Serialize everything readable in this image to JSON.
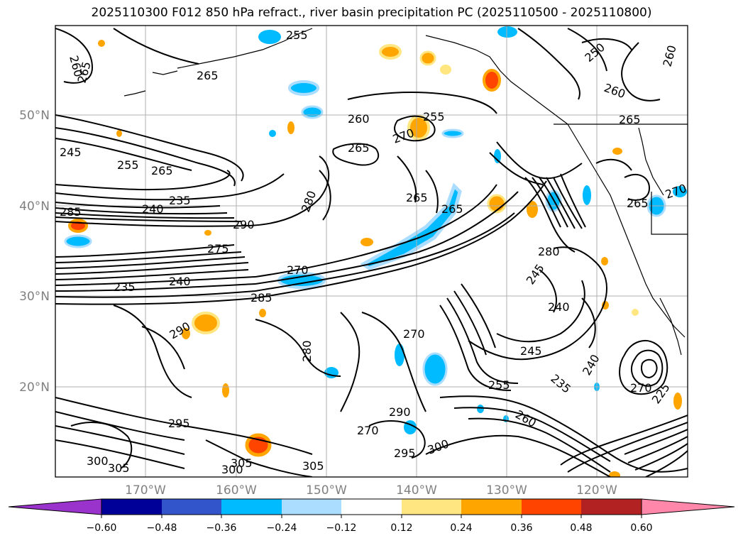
{
  "title": "2025110300 F012 850 hPa refract., river basin precipitation PC (2025110500 - 2025110800)",
  "latitude_labels": [
    "50°N",
    "40°N",
    "30°N",
    "20°N"
  ],
  "longitude_labels": [
    "170°W",
    "160°W",
    "150°W",
    "140°W",
    "130°W",
    "120°W"
  ],
  "colorbar": {
    "tick_labels": [
      "−0.60",
      "−0.48",
      "−0.36",
      "−0.24",
      "−0.12",
      "0.12",
      "0.24",
      "0.36",
      "0.48",
      "0.60"
    ],
    "colors": [
      "#9933cc",
      "#000099",
      "#3355cc",
      "#00bbff",
      "#aaddff",
      "#ffffff",
      "#ffe680",
      "#ffa500",
      "#ff4400",
      "#b22222",
      "#ff88aa"
    ]
  },
  "contour_labels": [
    "260",
    "265",
    "265",
    "255",
    "260",
    "255",
    "250",
    "260",
    "260",
    "265",
    "270",
    "265",
    "245",
    "255",
    "265",
    "235",
    "240",
    "265",
    "290",
    "280",
    "285",
    "265",
    "275",
    "270",
    "235",
    "240",
    "280",
    "245",
    "240",
    "285",
    "290",
    "270",
    "280",
    "245",
    "240",
    "235",
    "260",
    "255",
    "300",
    "305",
    "305",
    "295",
    "295",
    "300",
    "305",
    "300",
    "290",
    "270",
    "265",
    "270",
    "270",
    "225"
  ],
  "precip_colors": {
    "blue": "#00bbff",
    "light_blue": "#aaddff",
    "orange": "#ffa500",
    "yellow": "#ffe680",
    "red": "#ff4400"
  }
}
